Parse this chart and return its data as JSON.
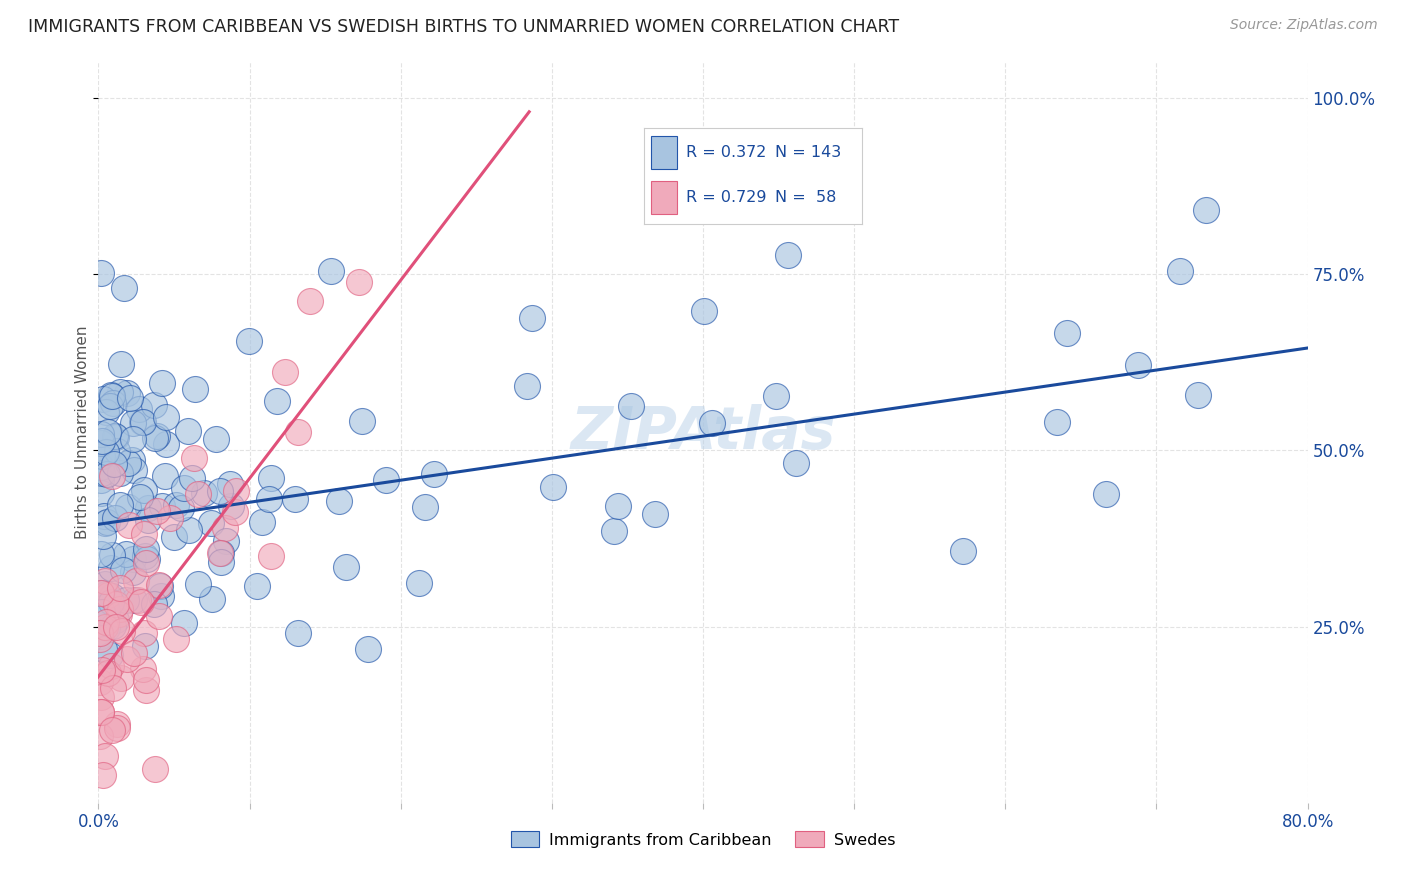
{
  "title": "IMMIGRANTS FROM CARIBBEAN VS SWEDISH BIRTHS TO UNMARRIED WOMEN CORRELATION CHART",
  "source": "Source: ZipAtlas.com",
  "ylabel": "Births to Unmarried Women",
  "yticks_labels": [
    "100.0%",
    "75.0%",
    "50.0%",
    "25.0%"
  ],
  "ytick_vals": [
    1.0,
    0.75,
    0.5,
    0.25
  ],
  "legend1_label": "Immigrants from Caribbean",
  "legend2_label": "Swedes",
  "R1": "0.372",
  "N1": "143",
  "R2": "0.729",
  "N2": "58",
  "color_blue": "#a8c4e0",
  "color_pink": "#f0aabb",
  "color_blue_dark": "#2255aa",
  "color_pink_dark": "#e06080",
  "title_color": "#222222",
  "source_color": "#999999",
  "trend_blue": "#1a4a9c",
  "trend_pink": "#e0507a",
  "xlim": [
    0.0,
    0.8
  ],
  "ylim": [
    0.0,
    1.05
  ],
  "blue_trend_x": [
    0.0,
    0.8
  ],
  "blue_trend_y": [
    0.395,
    0.645
  ],
  "pink_trend_x": [
    -0.005,
    0.285
  ],
  "pink_trend_y": [
    0.165,
    0.98
  ],
  "background_color": "#ffffff",
  "grid_color": "#dddddd",
  "watermark": "ZIPAtlas",
  "watermark_color": "#b8d0e8"
}
